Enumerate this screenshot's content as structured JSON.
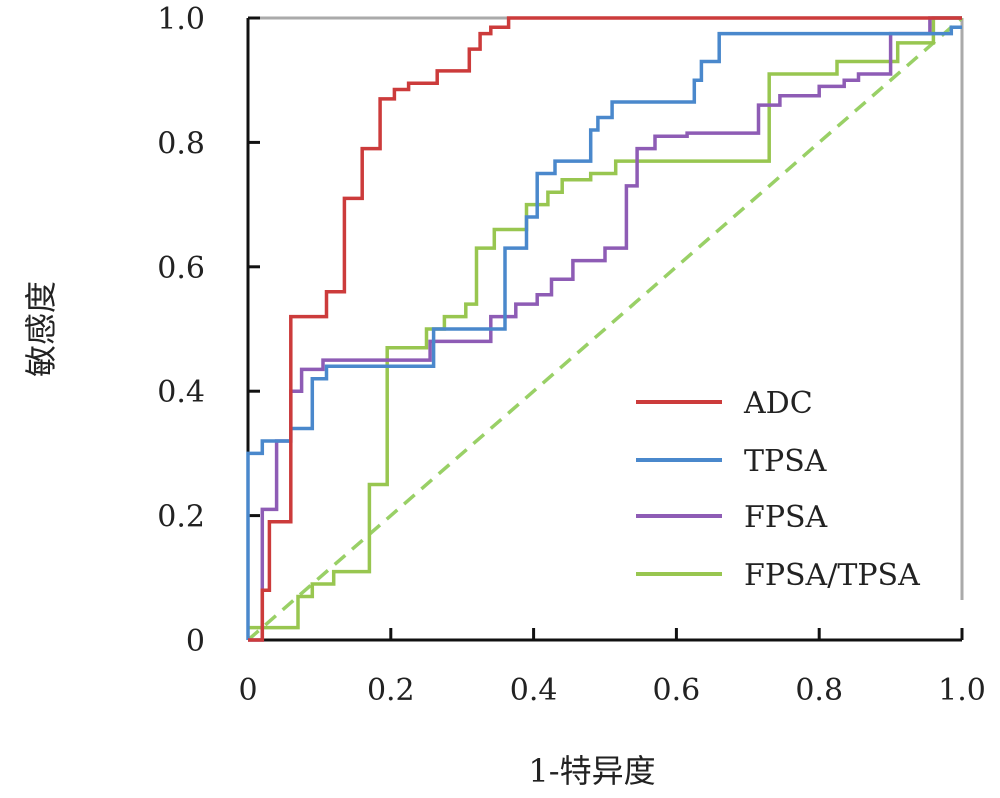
{
  "chart_data": {
    "type": "line",
    "title": "",
    "xlabel": "1-特异度",
    "ylabel": "敏感度",
    "xlim": [
      0,
      1
    ],
    "ylim": [
      0,
      1
    ],
    "x_ticks": [
      0,
      0.2,
      0.4,
      0.6,
      0.8,
      1.0
    ],
    "x_tick_labels": [
      "0",
      "0.2",
      "0.4",
      "0.6",
      "0.8",
      "1.0"
    ],
    "y_ticks": [
      0,
      0.2,
      0.4,
      0.6,
      0.8,
      1.0
    ],
    "y_tick_labels": [
      "0",
      "0.2",
      "0.4",
      "0.6",
      "0.8",
      "1.0"
    ],
    "grid": false,
    "legend_position": "bottom-right",
    "reference_line": {
      "x": [
        0,
        1
      ],
      "y": [
        0,
        1
      ],
      "color": "#99d066",
      "style": "dashed"
    },
    "series": [
      {
        "name": "ADC",
        "color": "#cc3b3b",
        "x": [
          0,
          0.02,
          0.02,
          0.03,
          0.03,
          0.06,
          0.06,
          0.11,
          0.11,
          0.135,
          0.135,
          0.16,
          0.16,
          0.185,
          0.185,
          0.205,
          0.205,
          0.225,
          0.225,
          0.265,
          0.265,
          0.31,
          0.31,
          0.325,
          0.325,
          0.34,
          0.34,
          0.365,
          0.365,
          1.0
        ],
        "y": [
          0,
          0,
          0.08,
          0.08,
          0.19,
          0.19,
          0.52,
          0.52,
          0.56,
          0.56,
          0.71,
          0.71,
          0.79,
          0.79,
          0.87,
          0.87,
          0.885,
          0.885,
          0.895,
          0.895,
          0.915,
          0.915,
          0.95,
          0.95,
          0.975,
          0.975,
          0.985,
          0.985,
          1.0,
          1.0
        ]
      },
      {
        "name": "TPSA",
        "color": "#4a88cc",
        "x": [
          0,
          0,
          0.02,
          0.02,
          0.06,
          0.06,
          0.09,
          0.09,
          0.11,
          0.11,
          0.26,
          0.26,
          0.36,
          0.36,
          0.39,
          0.39,
          0.405,
          0.405,
          0.43,
          0.43,
          0.48,
          0.48,
          0.49,
          0.49,
          0.51,
          0.51,
          0.625,
          0.625,
          0.635,
          0.635,
          0.66,
          0.66,
          0.985,
          0.985,
          1.0
        ],
        "y": [
          0,
          0.3,
          0.3,
          0.32,
          0.32,
          0.34,
          0.34,
          0.42,
          0.42,
          0.44,
          0.44,
          0.5,
          0.5,
          0.63,
          0.63,
          0.68,
          0.68,
          0.75,
          0.75,
          0.77,
          0.77,
          0.82,
          0.82,
          0.84,
          0.84,
          0.865,
          0.865,
          0.9,
          0.9,
          0.93,
          0.93,
          0.975,
          0.975,
          0.985,
          0.985
        ]
      },
      {
        "name": "FPSA",
        "color": "#8e5cb5",
        "x": [
          0,
          0.02,
          0.02,
          0.04,
          0.04,
          0.06,
          0.06,
          0.075,
          0.075,
          0.105,
          0.105,
          0.255,
          0.255,
          0.34,
          0.34,
          0.375,
          0.375,
          0.405,
          0.405,
          0.425,
          0.425,
          0.455,
          0.455,
          0.5,
          0.5,
          0.53,
          0.53,
          0.545,
          0.545,
          0.57,
          0.57,
          0.615,
          0.615,
          0.715,
          0.715,
          0.745,
          0.745,
          0.8,
          0.8,
          0.835,
          0.835,
          0.855,
          0.855,
          0.9,
          0.9,
          0.955,
          0.955,
          1.0
        ],
        "y": [
          0,
          0,
          0.21,
          0.21,
          0.32,
          0.32,
          0.4,
          0.4,
          0.435,
          0.435,
          0.45,
          0.45,
          0.48,
          0.48,
          0.52,
          0.52,
          0.54,
          0.54,
          0.555,
          0.555,
          0.58,
          0.58,
          0.61,
          0.61,
          0.63,
          0.63,
          0.73,
          0.73,
          0.79,
          0.79,
          0.81,
          0.81,
          0.815,
          0.815,
          0.86,
          0.86,
          0.875,
          0.875,
          0.89,
          0.89,
          0.9,
          0.9,
          0.91,
          0.91,
          0.975,
          0.975,
          1.0,
          1.0
        ]
      },
      {
        "name": "FPSA/TPSA",
        "color": "#98c650",
        "x": [
          0,
          0.07,
          0.07,
          0.09,
          0.09,
          0.12,
          0.12,
          0.17,
          0.17,
          0.195,
          0.195,
          0.25,
          0.25,
          0.275,
          0.275,
          0.305,
          0.305,
          0.32,
          0.32,
          0.345,
          0.345,
          0.39,
          0.39,
          0.42,
          0.42,
          0.44,
          0.44,
          0.48,
          0.48,
          0.515,
          0.515,
          0.73,
          0.73,
          0.825,
          0.825,
          0.91,
          0.91,
          0.96,
          0.96,
          1.0
        ],
        "y": [
          0.02,
          0.02,
          0.07,
          0.07,
          0.09,
          0.09,
          0.11,
          0.11,
          0.25,
          0.25,
          0.47,
          0.47,
          0.5,
          0.5,
          0.52,
          0.52,
          0.54,
          0.54,
          0.63,
          0.63,
          0.66,
          0.66,
          0.7,
          0.7,
          0.72,
          0.72,
          0.74,
          0.74,
          0.75,
          0.75,
          0.77,
          0.77,
          0.91,
          0.91,
          0.93,
          0.93,
          0.96,
          0.96,
          1.0,
          1.0
        ]
      }
    ]
  }
}
